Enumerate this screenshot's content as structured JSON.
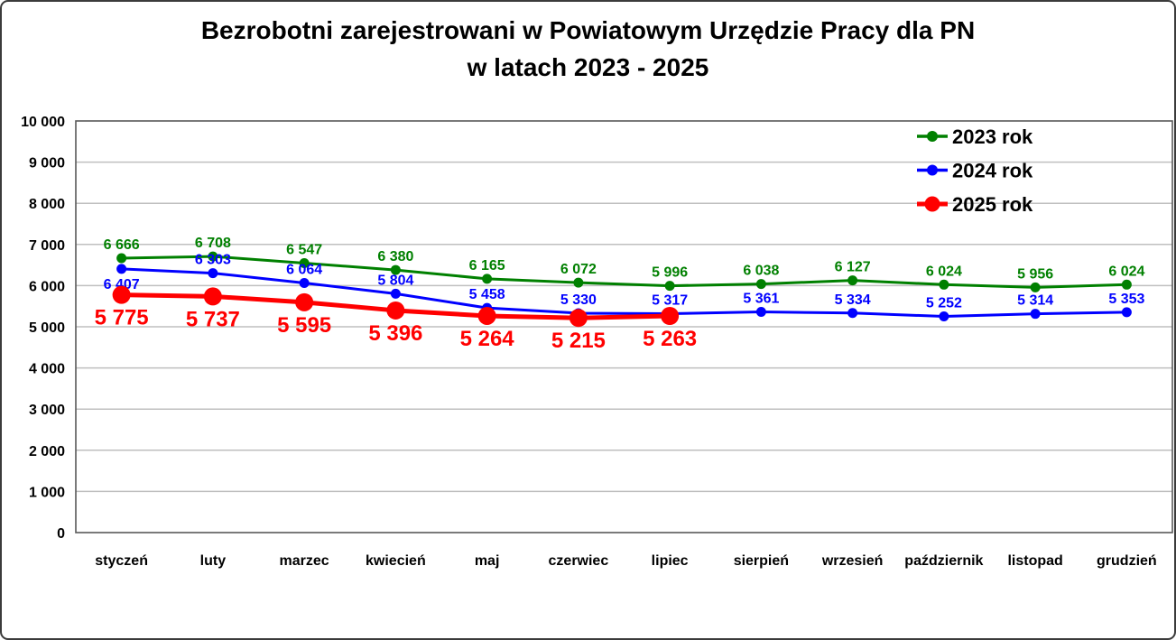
{
  "title": {
    "line1": "Bezrobotni zarejestrowani w Powiatowym Urzędzie Pracy dla PN",
    "line2": "w latach 2023 - 2025"
  },
  "chart_data": {
    "type": "line",
    "categories": [
      "styczeń",
      "luty",
      "marzec",
      "kwiecień",
      "maj",
      "czerwiec",
      "lipiec",
      "sierpień",
      "wrzesień",
      "październik",
      "listopad",
      "grudzień"
    ],
    "series": [
      {
        "name": "2023 rok",
        "color": "#008000",
        "values": [
          6666,
          6708,
          6547,
          6380,
          6165,
          6072,
          5996,
          6038,
          6127,
          6024,
          5956,
          6024
        ],
        "label_position": "above",
        "emphasis": false
      },
      {
        "name": "2024 rok",
        "color": "#0000FF",
        "values": [
          6407,
          6303,
          6064,
          5804,
          5458,
          5330,
          5317,
          5361,
          5334,
          5252,
          5314,
          5353
        ],
        "label_position": "above",
        "label_position_overrides": {
          "0": "below"
        },
        "emphasis": false
      },
      {
        "name": "2025 rok",
        "color": "#FF0000",
        "values": [
          5775,
          5737,
          5595,
          5396,
          5264,
          5215,
          5263,
          null,
          null,
          null,
          null,
          null
        ],
        "label_position": "below",
        "emphasis": true
      }
    ],
    "xlabel": "",
    "ylabel": "",
    "ylim": [
      0,
      10000
    ],
    "ytick_step": 1000,
    "ytick_labels": [
      "0",
      "1 000",
      "2 000",
      "3 000",
      "4 000",
      "5 000",
      "6 000",
      "7 000",
      "8 000",
      "9 000",
      "10 000"
    ],
    "grid": true,
    "legend_position": "top-right",
    "legend_entries": [
      "2023 rok",
      "2024 rok",
      "2025 rok"
    ],
    "colors": {
      "grid": "#BFBFBF",
      "plot_border": "#595959",
      "axis_text": "#000000",
      "background": "#FFFFFF"
    }
  }
}
